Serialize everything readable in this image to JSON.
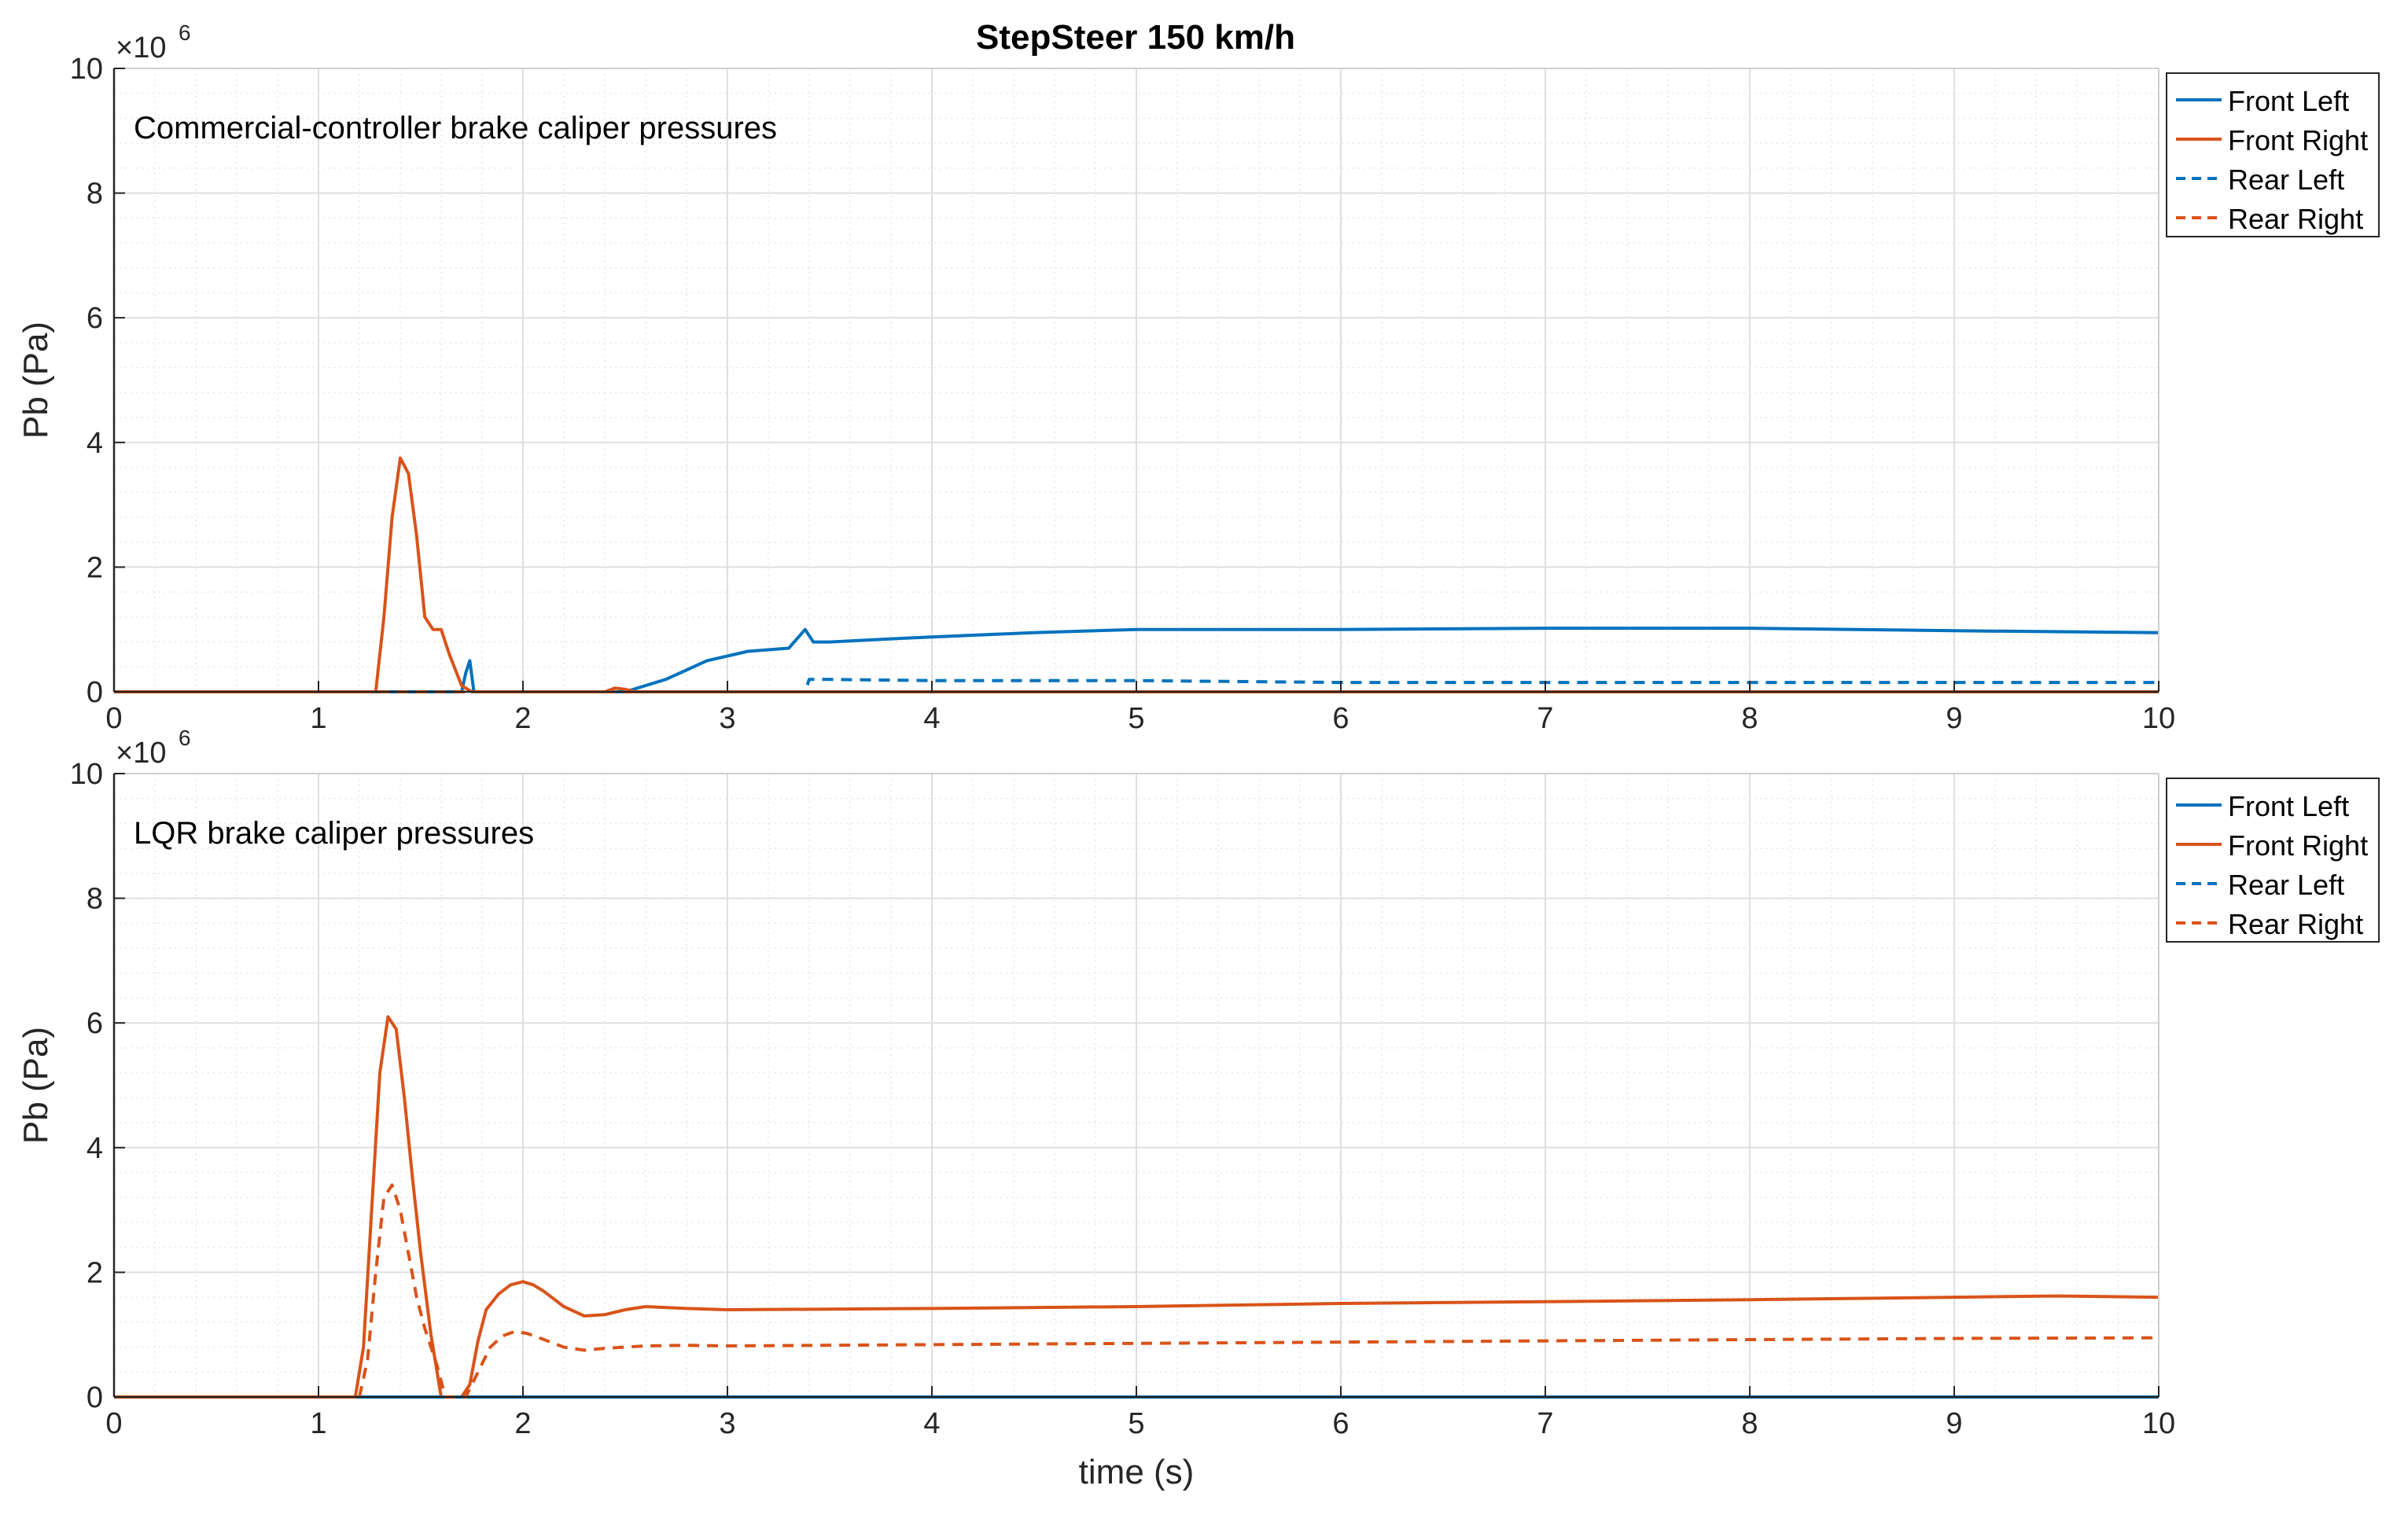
{
  "figure": {
    "title": "StepSteer 150 km/h"
  },
  "chart_data": [
    {
      "type": "line",
      "annotation": "Commercial-controller brake caliper pressures",
      "xlabel": "",
      "ylabel": "Pb (Pa)",
      "y_exponent": {
        "base": "×10",
        "power": "6"
      },
      "xlim": [
        0,
        10
      ],
      "ylim": [
        0,
        10000000
      ],
      "x_ticks": [
        0,
        1,
        2,
        3,
        4,
        5,
        6,
        7,
        8,
        9,
        10
      ],
      "y_ticks": [
        0,
        2000000,
        4000000,
        6000000,
        8000000,
        10000000
      ],
      "y_tick_labels": [
        "0",
        "2",
        "4",
        "6",
        "8",
        "10"
      ],
      "grid": "on, with minor grid",
      "legend_position": "top-right",
      "series": [
        {
          "name": "Front Left",
          "color": "#0072BD",
          "dash": "solid",
          "x": [
            0,
            1.7,
            1.72,
            1.74,
            1.76,
            2.5,
            2.7,
            2.9,
            3.1,
            3.3,
            3.38,
            3.42,
            3.5,
            3.8,
            4.0,
            4.5,
            5.0,
            6.0,
            7.0,
            8.0,
            9.0,
            10.0
          ],
          "values": [
            0,
            0,
            300000,
            500000,
            0,
            0,
            200000,
            500000,
            650000,
            700000,
            1000000,
            800000,
            800000,
            850000,
            880000,
            950000,
            1000000,
            1000000,
            1020000,
            1020000,
            980000,
            950000
          ]
        },
        {
          "name": "Front Right",
          "color": "#D95319",
          "dash": "solid",
          "x": [
            0,
            1.28,
            1.32,
            1.36,
            1.4,
            1.44,
            1.48,
            1.52,
            1.56,
            1.6,
            1.64,
            1.7,
            1.75,
            2.4,
            2.45,
            2.5,
            2.55,
            10.0
          ],
          "values": [
            0,
            0,
            1200000,
            2800000,
            3750000,
            3500000,
            2500000,
            1200000,
            1000000,
            1000000,
            600000,
            100000,
            0,
            0,
            60000,
            40000,
            0,
            0
          ]
        },
        {
          "name": "Rear Left",
          "color": "#0072BD",
          "dash": "dashed",
          "x": [
            0,
            3.38,
            3.4,
            3.45,
            4.0,
            5.0,
            6.0,
            7.0,
            8.0,
            9.0,
            10.0
          ],
          "values": [
            0,
            0,
            200000,
            200000,
            180000,
            180000,
            150000,
            150000,
            150000,
            150000,
            150000
          ]
        },
        {
          "name": "Rear Right",
          "color": "#D95319",
          "dash": "dashed",
          "x": [
            0,
            10
          ],
          "values": [
            0,
            0
          ]
        }
      ]
    },
    {
      "type": "line",
      "annotation": "LQR brake caliper pressures",
      "xlabel": "time (s)",
      "ylabel": "Pb (Pa)",
      "y_exponent": {
        "base": "×10",
        "power": "6"
      },
      "xlim": [
        0,
        10
      ],
      "ylim": [
        0,
        10000000
      ],
      "x_ticks": [
        0,
        1,
        2,
        3,
        4,
        5,
        6,
        7,
        8,
        9,
        10
      ],
      "y_ticks": [
        0,
        2000000,
        4000000,
        6000000,
        8000000,
        10000000
      ],
      "y_tick_labels": [
        "0",
        "2",
        "4",
        "6",
        "8",
        "10"
      ],
      "grid": "on, with minor grid",
      "legend_position": "top-right",
      "series": [
        {
          "name": "Front Left",
          "color": "#0072BD",
          "dash": "solid",
          "x": [
            0,
            10
          ],
          "values": [
            0,
            0
          ]
        },
        {
          "name": "Front Right",
          "color": "#D95319",
          "dash": "solid",
          "x": [
            0,
            1.18,
            1.22,
            1.26,
            1.3,
            1.34,
            1.38,
            1.42,
            1.46,
            1.5,
            1.55,
            1.6,
            1.7,
            1.74,
            1.78,
            1.82,
            1.88,
            1.94,
            2.0,
            2.05,
            2.1,
            2.2,
            2.3,
            2.4,
            2.5,
            2.6,
            2.8,
            3.0,
            4.0,
            5.0,
            6.0,
            7.0,
            8.0,
            9.0,
            9.5,
            10.0
          ],
          "values": [
            0,
            0,
            800000,
            3000000,
            5200000,
            6100000,
            5900000,
            4800000,
            3500000,
            2300000,
            1000000,
            0,
            0,
            200000,
            900000,
            1400000,
            1650000,
            1800000,
            1850000,
            1800000,
            1700000,
            1450000,
            1300000,
            1320000,
            1400000,
            1450000,
            1420000,
            1400000,
            1420000,
            1450000,
            1500000,
            1530000,
            1560000,
            1600000,
            1620000,
            1600000
          ]
        },
        {
          "name": "Rear Left",
          "color": "#0072BD",
          "dash": "dashed",
          "x": [
            0,
            10
          ],
          "values": [
            0,
            0
          ]
        },
        {
          "name": "Rear Right",
          "color": "#D95319",
          "dash": "dashed",
          "x": [
            0,
            1.2,
            1.24,
            1.28,
            1.32,
            1.36,
            1.4,
            1.44,
            1.48,
            1.52,
            1.58,
            1.62,
            1.72,
            1.78,
            1.84,
            1.9,
            1.96,
            2.02,
            2.08,
            2.2,
            2.3,
            2.4,
            2.6,
            2.8,
            3.0,
            4.0,
            5.0,
            6.0,
            7.0,
            8.0,
            9.0,
            10.0
          ],
          "values": [
            0,
            0,
            600000,
            2000000,
            3200000,
            3400000,
            3000000,
            2300000,
            1600000,
            1100000,
            500000,
            0,
            0,
            400000,
            800000,
            980000,
            1050000,
            1020000,
            950000,
            800000,
            750000,
            780000,
            820000,
            830000,
            820000,
            840000,
            860000,
            880000,
            900000,
            920000,
            940000,
            950000
          ]
        }
      ]
    }
  ]
}
